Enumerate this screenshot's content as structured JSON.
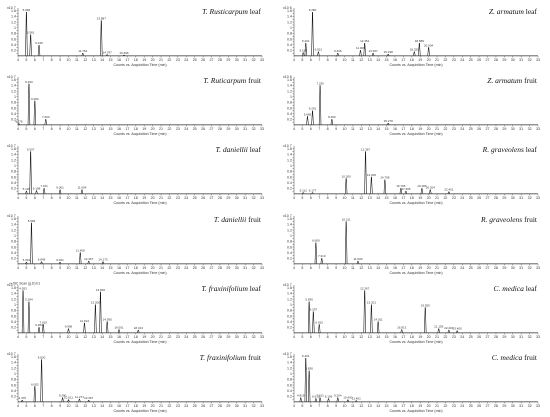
{
  "chart_data": [
    {
      "type": "line",
      "title_species": "T. Rusticarpum",
      "title_part": "leaf",
      "xlabel": "Counts vs. Acquisition Time (min)",
      "xlim": [
        4,
        33
      ],
      "ylim": [
        0,
        1.7
      ],
      "yticks": [
        "0.1",
        "0.2",
        "0.3",
        "0.4",
        "0.5",
        "0.6",
        "0.7",
        "0.8",
        "0.9",
        "1",
        "1.1",
        "1.2",
        "1.3",
        "1.4",
        "1.5",
        "1.6"
      ],
      "ymult": "x10 7",
      "peaks": [
        {
          "x": 5.0,
          "y": 1.55,
          "label": "5.096"
        },
        {
          "x": 5.5,
          "y": 0.75,
          "label": "5.581"
        },
        {
          "x": 6.5,
          "y": 0.38,
          "label": "6.445"
        },
        {
          "x": 13.9,
          "y": 1.25,
          "label": "13.887"
        },
        {
          "x": 11.7,
          "y": 0.1,
          "label": "11.764"
        },
        {
          "x": 14.6,
          "y": 0.05,
          "label": "14.797"
        },
        {
          "x": 16.6,
          "y": 0.03,
          "label": "16.605"
        }
      ]
    },
    {
      "type": "line",
      "title_species": "Z. armatum",
      "title_part": "leaf",
      "xlabel": "Counts vs. Acquisition Time (min)",
      "xlim": [
        4,
        33
      ],
      "ylim": [
        0,
        1.7
      ],
      "yticks": [
        "0.1",
        "0.2",
        "0.3",
        "0.4",
        "0.5",
        "0.6",
        "0.7",
        "0.8",
        "0.9",
        "1",
        "1.1",
        "1.2",
        "1.3",
        "1.4",
        "1.5",
        "1.6"
      ],
      "ymult": "x10 6",
      "peaks": [
        {
          "x": 6.2,
          "y": 1.55,
          "label": "6.280"
        },
        {
          "x": 5.4,
          "y": 0.45,
          "label": "5.401"
        },
        {
          "x": 5.1,
          "y": 0.12,
          "label": "5.154"
        },
        {
          "x": 6.9,
          "y": 0.15,
          "label": "6.921"
        },
        {
          "x": 9.2,
          "y": 0.1,
          "label": "9.236"
        },
        {
          "x": 11.9,
          "y": 0.2,
          "label": "11.909"
        },
        {
          "x": 12.4,
          "y": 0.45,
          "label": "12.351"
        },
        {
          "x": 13.4,
          "y": 0.1,
          "label": "13.357"
        },
        {
          "x": 15.2,
          "y": 0.06,
          "label": "15.238"
        },
        {
          "x": 18.3,
          "y": 0.15,
          "label": "18.325"
        },
        {
          "x": 18.9,
          "y": 0.45,
          "label": "18.889"
        },
        {
          "x": 20.0,
          "y": 0.3,
          "label": "20.004"
        }
      ]
    },
    {
      "type": "line",
      "title_species": "T. Ruticarpum",
      "title_part": "fruit",
      "xlabel": "Counts vs. Acquisition Time (min)",
      "xlim": [
        4,
        33
      ],
      "ylim": [
        0,
        1.7
      ],
      "yticks": [
        "0.1",
        "0.2",
        "0.3",
        "0.4",
        "0.5",
        "0.6",
        "0.7",
        "0.8",
        "0.9",
        "1",
        "1.1",
        "1.2",
        "1.3",
        "1.4",
        "1.5",
        "1.6"
      ],
      "ymult": "x10 7",
      "peaks": [
        {
          "x": 5.3,
          "y": 1.45,
          "label": "5.293"
        },
        {
          "x": 6.0,
          "y": 0.85,
          "label": "6.063"
        },
        {
          "x": 4.1,
          "y": 0.05,
          "label": "4.276"
        },
        {
          "x": 7.3,
          "y": 0.2,
          "label": "7.263"
        }
      ]
    },
    {
      "type": "line",
      "title_species": "Z. armatum",
      "title_part": "fruit",
      "xlabel": "Counts vs. Acquisition Time (min)",
      "xlim": [
        4,
        33
      ],
      "ylim": [
        0,
        1.7
      ],
      "yticks": [
        "0.1",
        "0.2",
        "0.3",
        "0.4",
        "0.5",
        "0.6",
        "0.7",
        "0.8",
        "0.9",
        "1",
        "1.1",
        "1.2",
        "1.3",
        "1.4",
        "1.5",
        "1.6"
      ],
      "ymult": "x10 6",
      "peaks": [
        {
          "x": 7.1,
          "y": 1.4,
          "label": "7.235"
        },
        {
          "x": 6.2,
          "y": 0.5,
          "label": "6.291"
        },
        {
          "x": 5.6,
          "y": 0.3,
          "label": "5.665"
        },
        {
          "x": 8.5,
          "y": 0.2,
          "label": "8.460"
        },
        {
          "x": 15.2,
          "y": 0.06,
          "label": "15.279"
        }
      ]
    },
    {
      "type": "line",
      "title_species": "T. daniellii",
      "title_part": "leaf",
      "xlabel": "Counts vs. Acquisition Time (min)",
      "xlim": [
        4,
        33
      ],
      "ylim": [
        0,
        1.7
      ],
      "yticks": [
        "0.1",
        "0.2",
        "0.3",
        "0.4",
        "0.5",
        "0.6",
        "0.7",
        "0.8",
        "0.9",
        "1",
        "1.1",
        "1.2",
        "1.3",
        "1.4",
        "1.5",
        "1.6"
      ],
      "ymult": "x10 7",
      "peaks": [
        {
          "x": 5.5,
          "y": 1.5,
          "label": "5.507"
        },
        {
          "x": 5.0,
          "y": 0.1,
          "label": "5.136"
        },
        {
          "x": 6.2,
          "y": 0.12,
          "label": "6.198"
        },
        {
          "x": 7.1,
          "y": 0.2,
          "label": "7.101"
        },
        {
          "x": 9.0,
          "y": 0.15,
          "label": "9.001"
        },
        {
          "x": 11.6,
          "y": 0.15,
          "label": "11.604"
        }
      ]
    },
    {
      "type": "line",
      "title_species": "R. graveolens",
      "title_part": "leaf",
      "xlabel": "Counts vs. Acquisition Time (min)",
      "xlim": [
        4,
        33
      ],
      "ylim": [
        0,
        1.7
      ],
      "yticks": [
        "0.1",
        "0.2",
        "0.3",
        "0.4",
        "0.5",
        "0.6",
        "0.7",
        "0.8",
        "0.9",
        "1",
        "1.1",
        "1.2",
        "1.3",
        "1.4",
        "1.5",
        "1.6"
      ],
      "ymult": "x10 7",
      "peaks": [
        {
          "x": 12.5,
          "y": 1.5,
          "label": "12.367"
        },
        {
          "x": 10.2,
          "y": 0.55,
          "label": "10.200"
        },
        {
          "x": 13.2,
          "y": 0.6,
          "label": "13.200"
        },
        {
          "x": 14.8,
          "y": 0.5,
          "label": "14.758"
        },
        {
          "x": 16.7,
          "y": 0.2,
          "label": "16.705"
        },
        {
          "x": 17.3,
          "y": 0.1,
          "label": "17.305"
        },
        {
          "x": 19.2,
          "y": 0.2,
          "label": "19.183"
        },
        {
          "x": 20.2,
          "y": 0.15,
          "label": "20.204"
        },
        {
          "x": 22.4,
          "y": 0.08,
          "label": "22.401"
        },
        {
          "x": 5.1,
          "y": 0.05,
          "label": "5.112"
        },
        {
          "x": 6.2,
          "y": 0.05,
          "label": "6.177"
        }
      ]
    },
    {
      "type": "line",
      "title_species": "T. daniellii",
      "title_part": "fruit",
      "xlabel": "Counts vs. Acquisition Time (min)",
      "xlim": [
        4,
        33
      ],
      "ylim": [
        0,
        1.7
      ],
      "yticks": [
        "0.1",
        "0.2",
        "0.3",
        "0.4",
        "0.5",
        "0.6",
        "0.7",
        "0.8",
        "0.9",
        "1",
        "1.1",
        "1.2",
        "1.3",
        "1.4",
        "1.5",
        "1.6"
      ],
      "ymult": "x10 7",
      "peaks": [
        {
          "x": 5.6,
          "y": 1.45,
          "label": "5.599"
        },
        {
          "x": 5.0,
          "y": 0.06,
          "label": "5.091"
        },
        {
          "x": 6.8,
          "y": 0.08,
          "label": "6.845"
        },
        {
          "x": 9.0,
          "y": 0.06,
          "label": "9.021"
        },
        {
          "x": 11.4,
          "y": 0.4,
          "label": "11.408"
        },
        {
          "x": 12.4,
          "y": 0.1,
          "label": "12.367"
        },
        {
          "x": 14.1,
          "y": 0.08,
          "label": "14.173"
        }
      ]
    },
    {
      "type": "line",
      "title_species": "R. graveolens",
      "title_part": "fruit",
      "xlabel": "Counts vs. Acquisition Time (min)",
      "xlim": [
        4,
        33
      ],
      "ylim": [
        0,
        1.7
      ],
      "yticks": [
        "0.1",
        "0.2",
        "0.3",
        "0.4",
        "0.5",
        "0.6",
        "0.7",
        "0.8",
        "0.9",
        "1",
        "1.1",
        "1.2",
        "1.3",
        "1.4",
        "1.5",
        "1.6"
      ],
      "ymult": "x10 7",
      "peaks": [
        {
          "x": 10.2,
          "y": 1.5,
          "label": "10.211"
        },
        {
          "x": 6.6,
          "y": 0.75,
          "label": "6.600"
        },
        {
          "x": 7.3,
          "y": 0.2,
          "label": "7.310"
        },
        {
          "x": 11.6,
          "y": 0.1,
          "label": "11.600"
        }
      ]
    },
    {
      "type": "line",
      "title_species": "T. fraxinifolium",
      "title_part": "leaf",
      "header": "+ TIC Scan (g.D) b1",
      "xlabel": "Counts vs. Acquisition Time (min)",
      "xlim": [
        4,
        33
      ],
      "ylim": [
        0,
        1.7
      ],
      "yticks": [
        "0.1",
        "0.2",
        "0.3",
        "0.4",
        "0.5",
        "0.6",
        "0.7",
        "0.8",
        "0.9",
        "1",
        "1.1",
        "1.2",
        "1.3",
        "1.4",
        "1.5",
        "1.6"
      ],
      "ymult": "x10 7",
      "peaks": [
        {
          "x": 4.6,
          "y": 1.5,
          "label": "4.553"
        },
        {
          "x": 5.3,
          "y": 1.1,
          "label": "5.284"
        },
        {
          "x": 6.5,
          "y": 0.2,
          "label": "6.484"
        },
        {
          "x": 7.0,
          "y": 0.3,
          "label": "7.015"
        },
        {
          "x": 10.0,
          "y": 0.15,
          "label": "9.996"
        },
        {
          "x": 11.9,
          "y": 0.35,
          "label": "11.914"
        },
        {
          "x": 13.2,
          "y": 1.0,
          "label": "13.200"
        },
        {
          "x": 13.8,
          "y": 1.45,
          "label": "13.846"
        },
        {
          "x": 14.6,
          "y": 0.4,
          "label": "14.595"
        },
        {
          "x": 16.0,
          "y": 0.12,
          "label": "16.001"
        },
        {
          "x": 18.3,
          "y": 0.1,
          "label": "18.313"
        }
      ]
    },
    {
      "type": "line",
      "title_species": "C. medica",
      "title_part": "leaf",
      "xlabel": "Counts vs. Acquisition Time (min)",
      "xlim": [
        4,
        33
      ],
      "ylim": [
        0,
        1.7
      ],
      "yticks": [
        "0.1",
        "0.2",
        "0.3",
        "0.4",
        "0.5",
        "0.6",
        "0.7",
        "0.8",
        "0.9",
        "1",
        "1.1",
        "1.2",
        "1.3",
        "1.4",
        "1.5",
        "1.6"
      ],
      "ymult": "x10 7",
      "peaks": [
        {
          "x": 5.8,
          "y": 1.1,
          "label": "5.836"
        },
        {
          "x": 6.3,
          "y": 0.75,
          "label": "6.297"
        },
        {
          "x": 7.0,
          "y": 0.3,
          "label": "6.915"
        },
        {
          "x": 12.4,
          "y": 1.5,
          "label": "12.367"
        },
        {
          "x": 13.2,
          "y": 1.0,
          "label": "13.201"
        },
        {
          "x": 14.0,
          "y": 0.4,
          "label": "14.011"
        },
        {
          "x": 16.8,
          "y": 0.12,
          "label": "16.813"
        },
        {
          "x": 19.6,
          "y": 0.9,
          "label": "19.555"
        },
        {
          "x": 21.2,
          "y": 0.15,
          "label": "21.159"
        },
        {
          "x": 22.4,
          "y": 0.1,
          "label": "22.401"
        },
        {
          "x": 23.4,
          "y": 0.08,
          "label": "23.400"
        }
      ]
    },
    {
      "type": "line",
      "title_species": "T. fraxinifolium",
      "title_part": "fruit",
      "xlabel": "Counts vs. Acquisition Time (min)",
      "xlim": [
        4,
        33
      ],
      "ylim": [
        0,
        1.7
      ],
      "yticks": [
        "0.1",
        "0.2",
        "0.3",
        "0.4",
        "0.5",
        "0.6",
        "0.7",
        "0.8",
        "0.9",
        "1",
        "1.1",
        "1.2",
        "1.3",
        "1.4",
        "1.5",
        "1.6"
      ],
      "ymult": "x10 7",
      "peaks": [
        {
          "x": 6.8,
          "y": 1.5,
          "label": "6.820"
        },
        {
          "x": 6.0,
          "y": 0.55,
          "label": "6.002"
        },
        {
          "x": 4.5,
          "y": 0.06,
          "label": "4.475"
        },
        {
          "x": 9.3,
          "y": 0.15,
          "label": "9.290"
        },
        {
          "x": 10.0,
          "y": 0.08,
          "label": "10.011"
        },
        {
          "x": 11.3,
          "y": 0.1,
          "label": "11.271"
        },
        {
          "x": 12.4,
          "y": 0.06,
          "label": "12.367"
        }
      ]
    },
    {
      "type": "line",
      "title_species": "C. medica",
      "title_part": "fruit",
      "xlabel": "Counts vs. Acquisition Time (min)",
      "xlim": [
        4,
        33
      ],
      "ylim": [
        0,
        1.7
      ],
      "yticks": [
        "0.1",
        "0.2",
        "0.3",
        "0.4",
        "0.5",
        "0.6",
        "0.7",
        "0.8",
        "0.9",
        "1",
        "1.1",
        "1.2",
        "1.3",
        "1.4",
        "1.5",
        "1.6"
      ],
      "ymult": "x10 7",
      "peaks": [
        {
          "x": 5.4,
          "y": 1.55,
          "label": "5.401"
        },
        {
          "x": 5.8,
          "y": 1.1,
          "label": "5.836"
        },
        {
          "x": 4.8,
          "y": 0.15,
          "label": "4.819"
        },
        {
          "x": 6.6,
          "y": 0.12,
          "label": "6.615"
        },
        {
          "x": 7.1,
          "y": 0.15,
          "label": "7.101"
        },
        {
          "x": 8.1,
          "y": 0.12,
          "label": "8.106"
        },
        {
          "x": 9.2,
          "y": 0.15,
          "label": "9.204"
        },
        {
          "x": 10.4,
          "y": 0.08,
          "label": "10.400"
        },
        {
          "x": 11.4,
          "y": 0.05,
          "label": "11.401"
        }
      ]
    }
  ]
}
